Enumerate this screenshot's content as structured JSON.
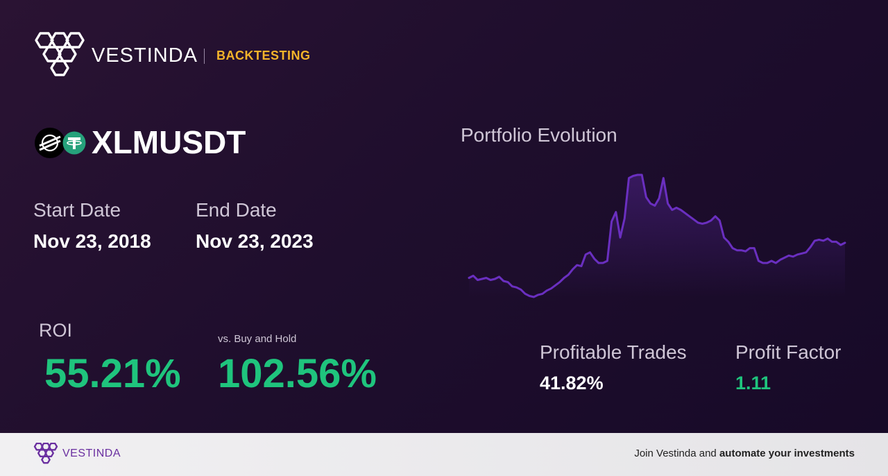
{
  "brand": {
    "name": "VESTINDA",
    "subtitle": "BACKTESTING"
  },
  "pair": {
    "symbol": "XLMUSDT",
    "base_icon": "stellar-lumens-icon",
    "quote_icon": "tether-icon"
  },
  "dates": {
    "start_label": "Start Date",
    "start_value": "Nov 23, 2018",
    "end_label": "End Date",
    "end_value": "Nov 23, 2023"
  },
  "roi": {
    "label": "ROI",
    "value": "55.21%",
    "bh_label": "vs. Buy and Hold",
    "bh_value": "102.56%"
  },
  "chart": {
    "title": "Portfolio Evolution"
  },
  "chart_data": {
    "type": "area",
    "title": "Portfolio Evolution",
    "line_color": "#6a2fc0",
    "y": [
      82,
      84,
      80,
      81,
      82,
      80,
      81,
      83,
      79,
      78,
      74,
      73,
      71,
      67,
      65,
      64,
      66,
      67,
      70,
      72,
      75,
      78,
      82,
      85,
      90,
      94,
      93,
      104,
      106,
      100,
      96,
      96,
      98,
      135,
      144,
      120,
      138,
      176,
      178,
      179,
      179,
      158,
      152,
      150,
      157,
      176,
      152,
      146,
      148,
      146,
      143,
      140,
      137,
      134,
      133,
      134,
      136,
      140,
      136,
      120,
      116,
      110,
      108,
      108,
      107,
      110,
      110,
      98,
      96,
      96,
      98,
      96,
      99,
      101,
      103,
      102,
      104,
      105,
      106,
      111,
      117,
      118,
      117,
      119,
      116,
      116,
      113,
      115
    ],
    "grid": false,
    "legend": "none"
  },
  "stats": {
    "profitable_label": "Profitable Trades",
    "profitable_value": "41.82%",
    "factor_label": "Profit Factor",
    "factor_value": "1.11"
  },
  "colors": {
    "accent_green": "#1fc47d",
    "accent_gold": "#f5b42a",
    "brand_purple": "#6a2fa0"
  },
  "footer": {
    "brand": "VESTINDA",
    "cta_prefix": "Join Vestinda and ",
    "cta_bold": "automate your investments"
  }
}
